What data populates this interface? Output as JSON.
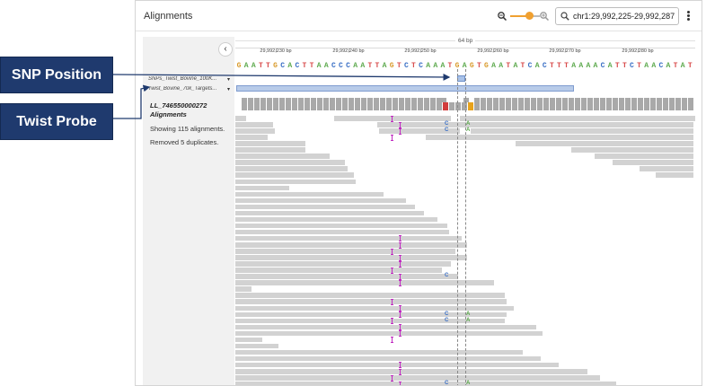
{
  "callouts": {
    "snp": "SNP Position",
    "twist": "Twist Probe"
  },
  "header": {
    "title": "Alignments",
    "search_value": "chr1:29,992,225-29,992,287"
  },
  "sidebar": {
    "snp_track": "SNPs_Twist_Bovine_100K...",
    "twist_track": "Twist_Bovine_70k_Targets...",
    "alignments_name": "LL_746550000272 Alignments",
    "count": "Showing 115 alignments.",
    "duplicates": "Removed 5 duplicates."
  },
  "ruler": {
    "span": "64 bp",
    "ticks": [
      "29,992,230 bp",
      "29,992,240 bp",
      "29,992,250 bp",
      "29,992,260 bp",
      "29,992,270 bp",
      "29,992,280 bp"
    ]
  },
  "sequence": "GAATTGCACTTAACCCAATTAGTCTCAAATGAGTGAATATCACTTTAAAACATTCTAACATATT",
  "base_colors": {
    "A": "#5aa84a",
    "C": "#3a6fc5",
    "G": "#d99a2b",
    "T": "#d84a4a"
  },
  "mismatches": [
    {
      "base": "C",
      "row": 1
    },
    {
      "base": "A",
      "row": 1
    },
    {
      "base": "C",
      "row": 2
    },
    {
      "base": "A",
      "row": 2
    },
    {
      "base": "C",
      "row": 25
    },
    {
      "base": "C",
      "row": 31
    },
    {
      "base": "A",
      "row": 31
    },
    {
      "base": "C",
      "row": 32
    },
    {
      "base": "A",
      "row": 32
    },
    {
      "base": "C",
      "row": 42
    },
    {
      "base": "A",
      "row": 42
    }
  ]
}
